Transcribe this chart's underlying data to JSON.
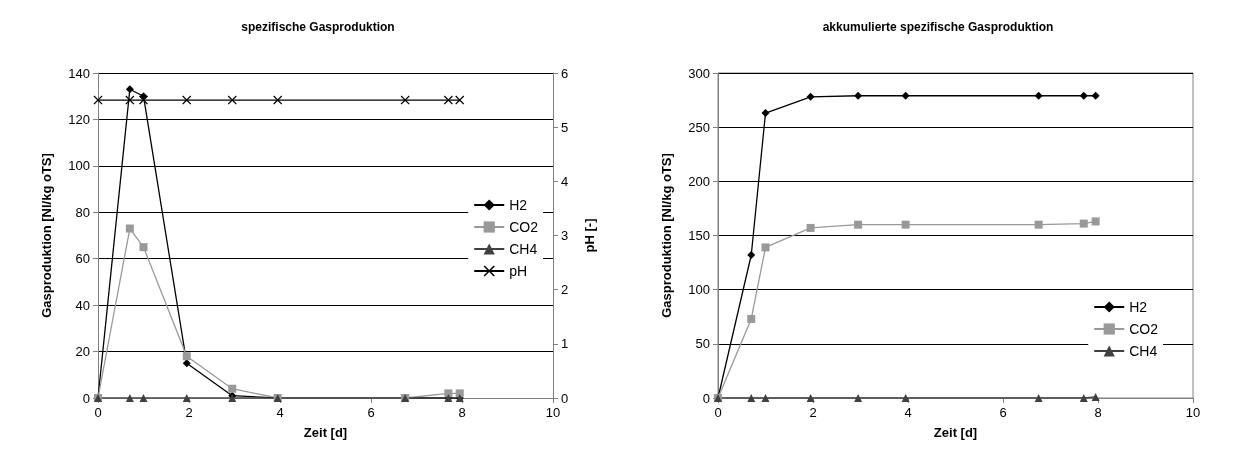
{
  "chart_data": [
    {
      "type": "line",
      "title": "spezifische Gasproduktion",
      "xlabel": "Zeit [d]",
      "ylabel": "Gasproduktion [Nl/kg oTS]",
      "y2label": "pH [-]",
      "x": [
        0,
        0.7,
        1,
        1.95,
        2.95,
        3.95,
        6.75,
        7.7,
        7.95
      ],
      "xlim": [
        0,
        10
      ],
      "xticks": [
        0,
        2,
        4,
        6,
        8,
        10
      ],
      "ylim": [
        0,
        140
      ],
      "yticks": [
        0,
        20,
        40,
        60,
        80,
        100,
        120,
        140
      ],
      "y2lim": [
        0,
        6
      ],
      "y2ticks": [
        0,
        1,
        2,
        3,
        4,
        5,
        6
      ],
      "grid": "y",
      "legend": "right",
      "series": [
        {
          "name": "H2",
          "color": "#000000",
          "marker": "diamond",
          "values": [
            0,
            133,
            130,
            15,
            1,
            0,
            0,
            0,
            0
          ]
        },
        {
          "name": "CO2",
          "color": "#999999",
          "marker": "square",
          "values": [
            0,
            73,
            65,
            18,
            4,
            0,
            0,
            2,
            2
          ]
        },
        {
          "name": "CH4",
          "color": "#404040",
          "marker": "triangle",
          "values": [
            0,
            0,
            0,
            0,
            0,
            0,
            0,
            0,
            0
          ]
        },
        {
          "name": "pH",
          "color": "#000000",
          "marker": "cross",
          "axis": "y2",
          "values": [
            5.5,
            5.5,
            5.5,
            5.5,
            5.5,
            5.5,
            5.5,
            5.5,
            5.5
          ]
        }
      ]
    },
    {
      "type": "line",
      "title": "akkumulierte spezifische Gasproduktion",
      "xlabel": "Zeit [d]",
      "ylabel": "Gasproduktion [Nl/kg oTS]",
      "x": [
        0,
        0.7,
        1,
        1.95,
        2.95,
        3.95,
        6.75,
        7.7,
        7.95
      ],
      "xlim": [
        0,
        10
      ],
      "xticks": [
        0,
        2,
        4,
        6,
        8,
        10
      ],
      "ylim": [
        0,
        300
      ],
      "yticks": [
        0,
        50,
        100,
        150,
        200,
        250,
        300
      ],
      "grid": "y",
      "legend": "bottom right",
      "series": [
        {
          "name": "H2",
          "color": "#000000",
          "marker": "diamond",
          "values": [
            0,
            132,
            263,
            278,
            279,
            279,
            279,
            279,
            279
          ]
        },
        {
          "name": "CO2",
          "color": "#999999",
          "marker": "square",
          "values": [
            0,
            73,
            139,
            157,
            160,
            160,
            160,
            161,
            163
          ]
        },
        {
          "name": "CH4",
          "color": "#404040",
          "marker": "triangle",
          "values": [
            0,
            0,
            0,
            0,
            0,
            0,
            0,
            0,
            1
          ]
        }
      ]
    }
  ]
}
